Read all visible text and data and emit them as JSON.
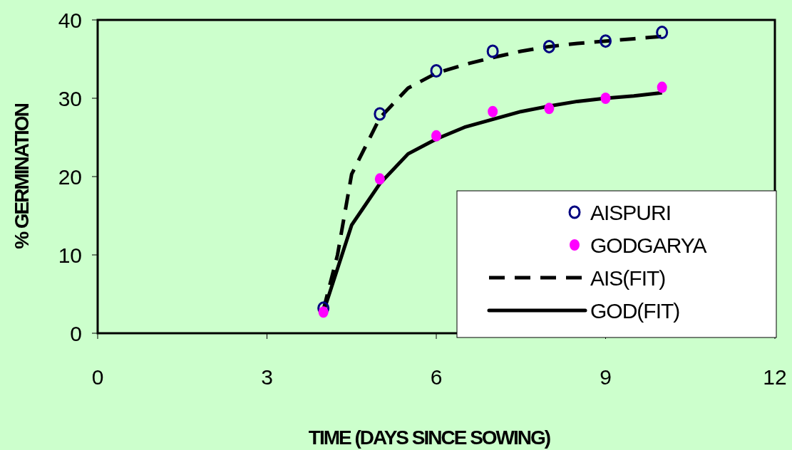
{
  "chart_data": {
    "type": "scatter",
    "xlabel": "TIME (DAYS SINCE SOWING)",
    "ylabel": "% GERMINATION",
    "xlim": [
      0,
      12
    ],
    "xticks": [
      0,
      3,
      6,
      9,
      12
    ],
    "ylim": [
      0,
      40
    ],
    "yticks": [
      0,
      10,
      20,
      30,
      40
    ],
    "grid": false,
    "legend": "bottom right",
    "series": [
      {
        "name": "AISPURI",
        "marker": "circle",
        "color": "#000080",
        "x": [
          4,
          5,
          6,
          7,
          8,
          9,
          10
        ],
        "values": [
          3.2,
          28,
          33.5,
          36,
          36.6,
          37.3,
          38.4
        ]
      },
      {
        "name": "GODGARYA",
        "marker": "circle",
        "color": "#ff00ff",
        "x": [
          4,
          5,
          6,
          7,
          8,
          9,
          10
        ],
        "values": [
          2.7,
          19.7,
          25.2,
          28.3,
          28.7,
          30,
          31.4
        ]
      },
      {
        "name": "AIS(FIT)",
        "type": "line",
        "line_style": "dashed",
        "color": "#000000",
        "x": [
          4,
          4.25,
          4.5,
          5,
          5.5,
          6,
          6.5,
          7,
          7.5,
          8,
          8.5,
          9,
          9.5,
          10
        ],
        "values": [
          3,
          10,
          20.3,
          27.5,
          31.3,
          33.2,
          34.3,
          35.2,
          36,
          36.6,
          37,
          37.3,
          37.6,
          37.9
        ]
      },
      {
        "name": "GOD(FIT)",
        "type": "line",
        "line_style": "solid",
        "color": "#000000",
        "x": [
          4,
          4.5,
          5,
          5.5,
          6,
          6.5,
          7,
          7.5,
          8,
          8.5,
          9,
          9.5,
          10
        ],
        "values": [
          2.7,
          13.8,
          19.1,
          22.9,
          24.8,
          26.3,
          27.3,
          28.3,
          29,
          29.6,
          30,
          30.3,
          30.7
        ]
      }
    ]
  }
}
